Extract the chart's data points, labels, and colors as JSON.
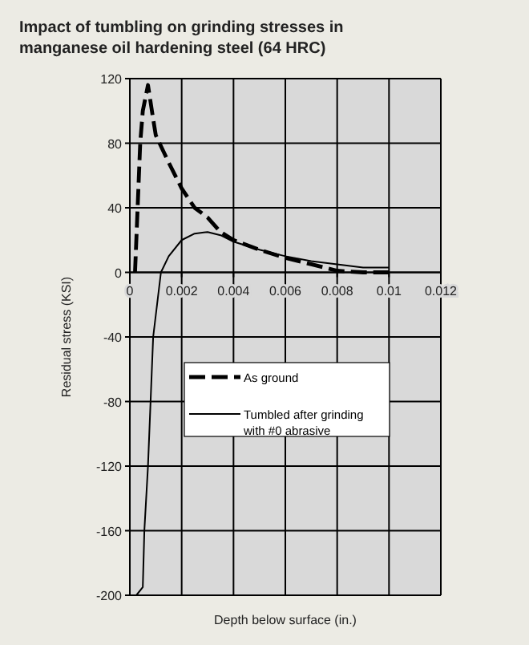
{
  "chart_data": {
    "type": "line",
    "title": "Impact of tumbling on grinding stresses in manganese oil hardening steel (64 HRC)",
    "xlabel": "Depth below surface (in.)",
    "ylabel": "Residual stress (KSI)",
    "xlim": [
      0,
      0.012
    ],
    "ylim": [
      -200,
      120
    ],
    "xticks": [
      0,
      0.002,
      0.004,
      0.006,
      0.008,
      0.01,
      0.012
    ],
    "yticks": [
      -200,
      -160,
      -120,
      -80,
      -40,
      0,
      40,
      80,
      120
    ],
    "grid": true,
    "legend": "bottom",
    "series": [
      {
        "name": "As ground",
        "color": "#000000",
        "line_style": "dashed",
        "x": [
          0.0002,
          0.0003,
          0.0004,
          0.0005,
          0.0007,
          0.0009,
          0.001,
          0.0015,
          0.002,
          0.0025,
          0.003,
          0.0035,
          0.004,
          0.005,
          0.006,
          0.007,
          0.008,
          0.009,
          0.01
        ],
        "values": [
          0,
          40,
          80,
          100,
          116,
          95,
          85,
          68,
          52,
          40,
          34,
          25,
          20,
          14,
          9,
          5,
          1,
          0,
          0
        ]
      },
      {
        "name": "Tumbled after grinding with #0 abrasive",
        "color": "#000000",
        "line_style": "solid",
        "x": [
          0.00025,
          0.0005,
          0.00056,
          0.0007,
          0.0008,
          0.0009,
          0.00105,
          0.0012,
          0.0015,
          0.002,
          0.0025,
          0.003,
          0.0035,
          0.004,
          0.005,
          0.006,
          0.007,
          0.008,
          0.009,
          0.01
        ],
        "values": [
          -200,
          -195,
          -160,
          -120,
          -80,
          -40,
          -20,
          0,
          10,
          20,
          24,
          25,
          23,
          19,
          14,
          10,
          7,
          5,
          3,
          3
        ]
      }
    ]
  }
}
